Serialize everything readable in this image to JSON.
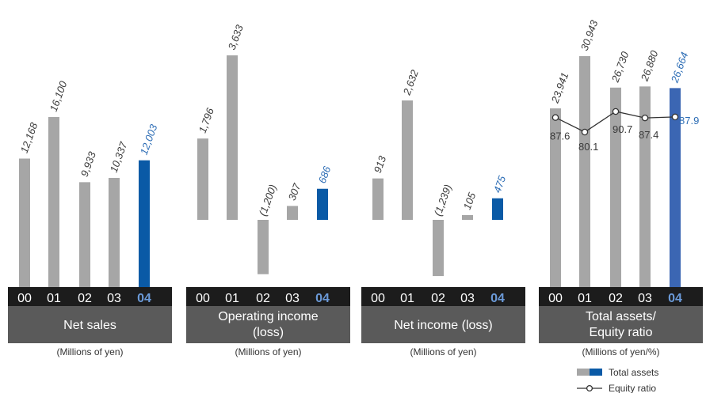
{
  "colors": {
    "bar_gray": "#a6a6a6",
    "bar_highlight": "#0a5aa6",
    "bar_highlight_assets": "#3b66b3",
    "label_gray": "#3a3a3a",
    "label_highlight": "#2d6db5",
    "year_band": "#1c1c1c",
    "year_text": "#ffffff",
    "year_highlight_text": "#6b9ad8",
    "title_box": "#5a5a5a",
    "title_text": "#ffffff"
  },
  "panels": [
    {
      "title": [
        "Net sales"
      ],
      "unit": "(Millions of yen)"
    },
    {
      "title": [
        "Operating income",
        "(loss)"
      ],
      "unit": "(Millions of yen)"
    },
    {
      "title": [
        "Net income (loss)"
      ],
      "unit": "(Millions of yen)"
    },
    {
      "title": [
        "Total assets/",
        "Equity ratio"
      ],
      "unit": "(Millions of yen/%)"
    }
  ],
  "legend": {
    "total_assets": "Total assets",
    "equity_ratio": "Equity ratio"
  },
  "chart_data": [
    {
      "type": "bar",
      "title": "Net sales",
      "unit": "(Millions of yen)",
      "categories": [
        "00",
        "01",
        "02",
        "03",
        "04"
      ],
      "values": [
        12168,
        16100,
        9933,
        10337,
        12003
      ],
      "labels": [
        "12,168",
        "16,100",
        "9,933",
        "10,337",
        "12,003"
      ],
      "highlight_index": 4
    },
    {
      "type": "bar",
      "title": "Operating income (loss)",
      "unit": "(Millions of yen)",
      "categories": [
        "00",
        "01",
        "02",
        "03",
        "04"
      ],
      "values": [
        1796,
        3633,
        -1200,
        307,
        686
      ],
      "labels": [
        "1,796",
        "3,633",
        "(1,200)",
        "307",
        "686"
      ],
      "highlight_index": 4
    },
    {
      "type": "bar",
      "title": "Net income (loss)",
      "unit": "(Millions of yen)",
      "categories": [
        "00",
        "01",
        "02",
        "03",
        "04"
      ],
      "values": [
        913,
        2632,
        -1239,
        105,
        475
      ],
      "labels": [
        "913",
        "2,632",
        "(1,239)",
        "105",
        "475"
      ],
      "highlight_index": 4
    },
    {
      "type": "bar",
      "title": "Total assets/ Equity ratio",
      "unit": "(Millions of yen/%)",
      "categories": [
        "00",
        "01",
        "02",
        "03",
        "04"
      ],
      "series": [
        {
          "name": "Total assets",
          "type": "bar",
          "values": [
            23941,
            30943,
            26730,
            26880,
            26664
          ],
          "labels": [
            "23,941",
            "30,943",
            "26,730",
            "26,880",
            "26,664"
          ]
        },
        {
          "name": "Equity ratio",
          "type": "line",
          "values": [
            87.6,
            80.1,
            90.7,
            87.4,
            87.9
          ],
          "labels": [
            "87.6",
            "80.1",
            "90.7",
            "87.4",
            "87.9"
          ]
        }
      ],
      "highlight_index": 4
    }
  ]
}
